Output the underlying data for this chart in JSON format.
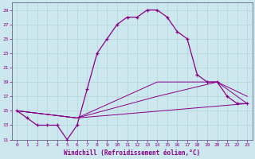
{
  "xlabel": "Windchill (Refroidissement éolien,°C)",
  "bg_color": "#cce8ee",
  "grid_color": "#aacccc",
  "line_color": "#880088",
  "xlim": [
    -0.5,
    23.5
  ],
  "ylim": [
    11,
    30
  ],
  "xticks": [
    0,
    1,
    2,
    3,
    4,
    5,
    6,
    7,
    8,
    9,
    10,
    11,
    12,
    13,
    14,
    15,
    16,
    17,
    18,
    19,
    20,
    21,
    22,
    23
  ],
  "yticks": [
    11,
    13,
    15,
    17,
    19,
    21,
    23,
    25,
    27,
    29
  ],
  "series": {
    "line1": {
      "x": [
        0,
        1,
        2,
        3,
        4,
        5,
        6,
        7,
        8,
        9,
        10,
        11,
        12,
        13,
        14,
        15,
        16,
        17,
        18,
        19,
        20,
        21,
        22,
        23
      ],
      "y": [
        15,
        14,
        13,
        13,
        13,
        11,
        13,
        18,
        23,
        25,
        27,
        28,
        28,
        29,
        29,
        28,
        26,
        25,
        20,
        19,
        19,
        17,
        16,
        16
      ]
    },
    "line2": {
      "x": [
        0,
        6,
        14,
        19,
        20,
        23
      ],
      "y": [
        15,
        14,
        19,
        19,
        19,
        17
      ]
    },
    "line3": {
      "x": [
        0,
        6,
        14,
        20,
        23
      ],
      "y": [
        15,
        14,
        17,
        19,
        16
      ]
    },
    "line4": {
      "x": [
        0,
        6,
        23
      ],
      "y": [
        15,
        14,
        16
      ]
    }
  }
}
